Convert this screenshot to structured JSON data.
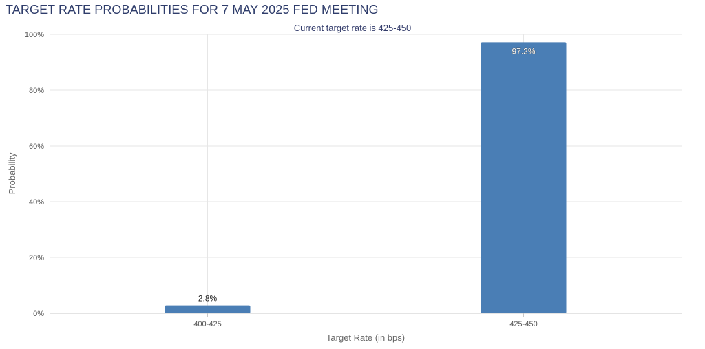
{
  "header": {
    "title": "TARGET RATE PROBABILITIES FOR 7 MAY 2025 FED MEETING"
  },
  "chart_data": {
    "type": "bar",
    "title": "TARGET RATE PROBABILITIES FOR 7 MAY 2025 FED MEETING",
    "subtitle": "Current target rate is 425-450",
    "categories": [
      "400-425",
      "425-450"
    ],
    "values": [
      2.8,
      97.2
    ],
    "value_labels": [
      "2.8%",
      "97.2%"
    ],
    "xlabel": "Target Rate (in bps)",
    "ylabel": "Probability",
    "ylim": [
      0,
      100
    ],
    "yticks": [
      0,
      20,
      40,
      60,
      80,
      100
    ],
    "ytick_labels": [
      "0%",
      "20%",
      "40%",
      "60%",
      "80%",
      "100%"
    ],
    "grid": true,
    "legend": "none",
    "colors": {
      "bar": "#4a7eb5",
      "grid": "#e6e6e6",
      "title": "#2f3d6b"
    }
  }
}
